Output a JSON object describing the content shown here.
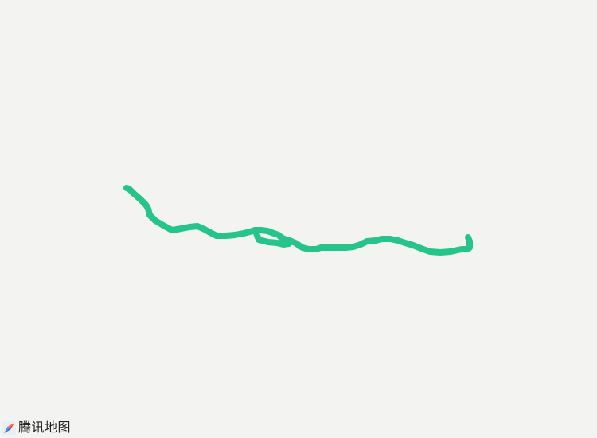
{
  "map": {
    "provider_label": "腾讯地图",
    "logo_icon": "tencent-map-logo-icon",
    "background_color": "#f3f3f1",
    "route": {
      "color": "#26c48a"
    }
  }
}
